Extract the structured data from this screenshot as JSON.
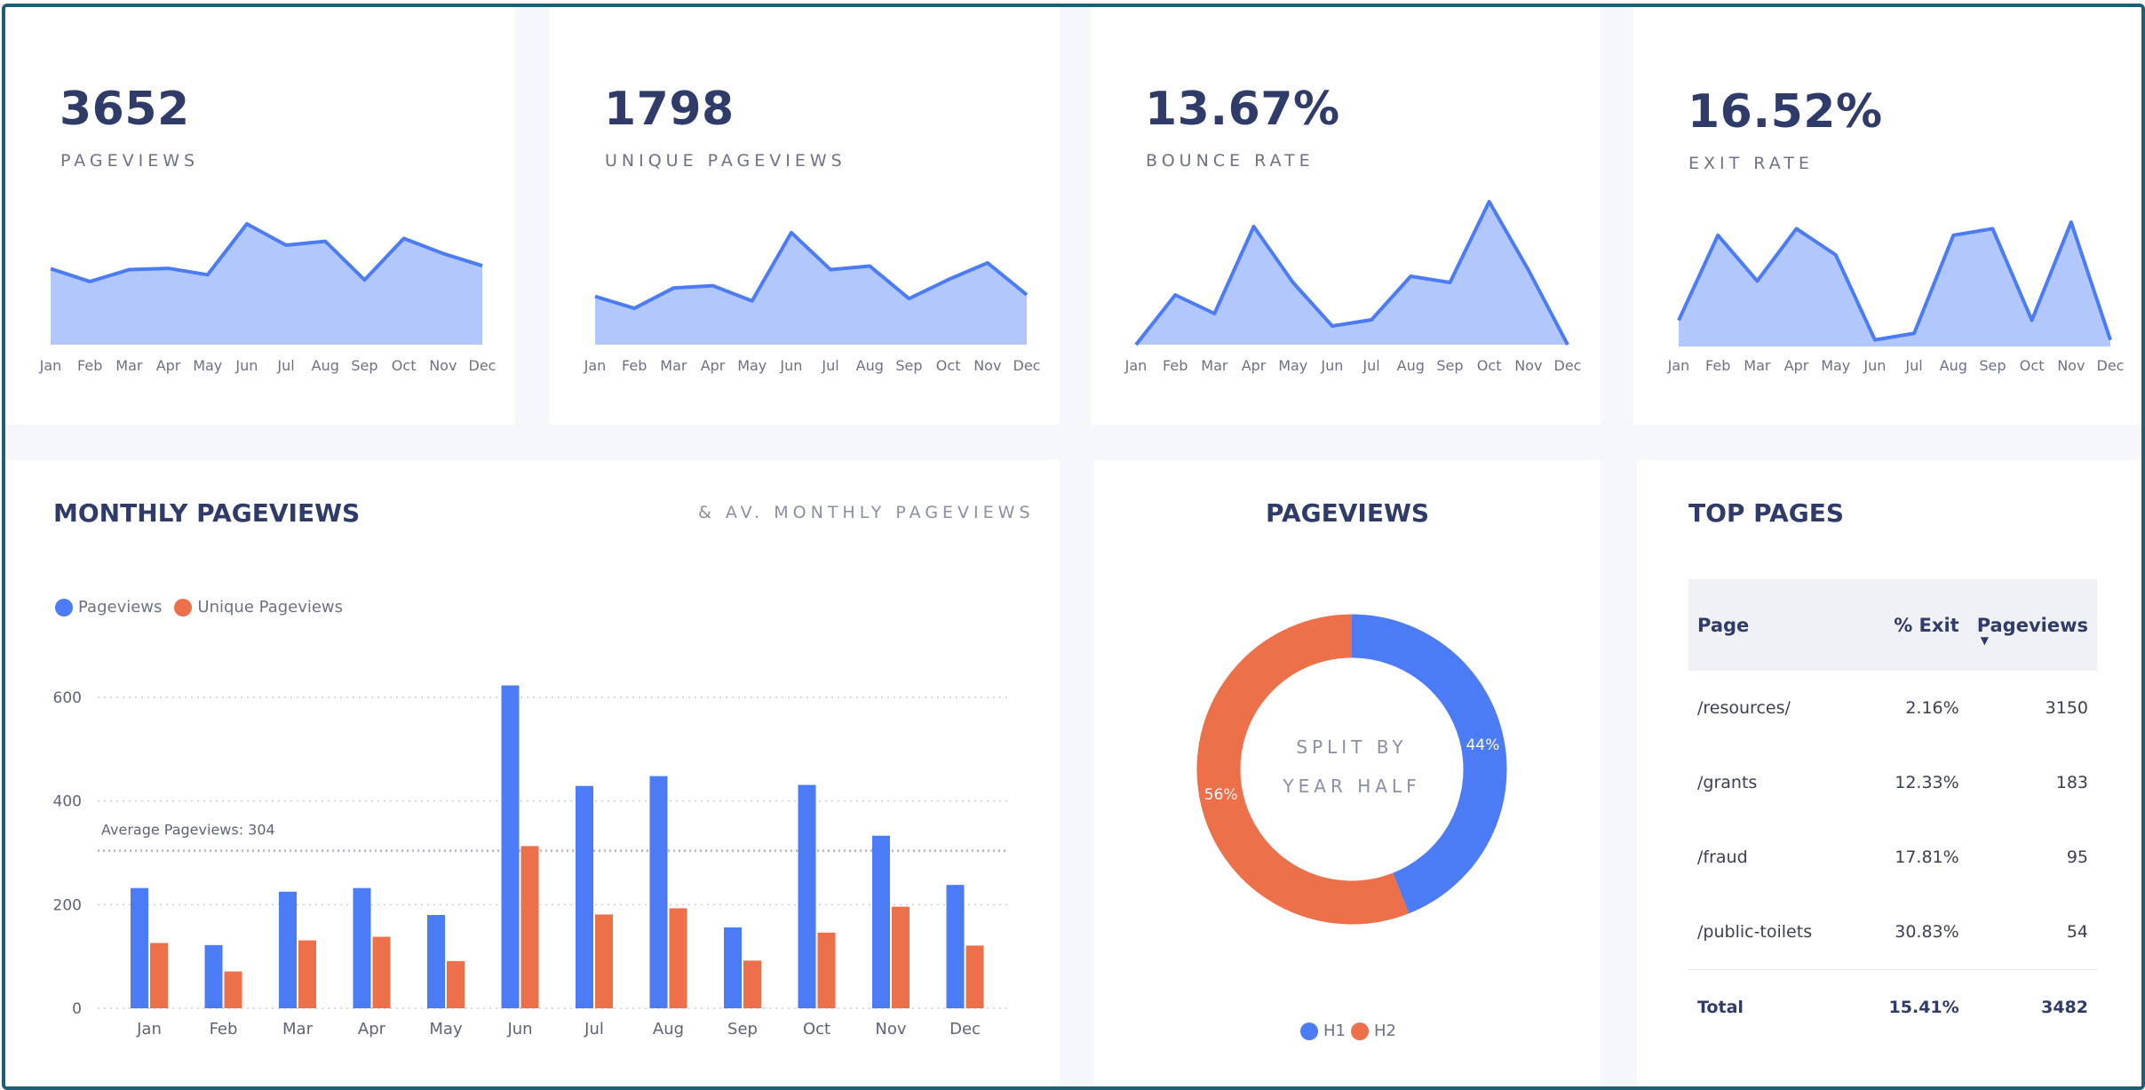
{
  "colors": {
    "accent_blue": "#4b7bf5",
    "accent_orange": "#ec7049",
    "spark_fill": "#b2c7fb",
    "title": "#2f3b69"
  },
  "kpis": [
    {
      "value": "3652",
      "label": "PAGEVIEWS"
    },
    {
      "value": "1798",
      "label": "UNIQUE PAGEVIEWS"
    },
    {
      "value": "13.67%",
      "label": "BOUNCE RATE"
    },
    {
      "value": "16.52%",
      "label": "EXIT RATE"
    }
  ],
  "monthly": {
    "title": "MONTHLY PAGEVIEWS",
    "subtitle": "& AV. MONTHLY PAGEVIEWS",
    "legend": [
      "Pageviews",
      "Unique Pageviews"
    ],
    "average_label": "Average Pageviews: 304"
  },
  "donut": {
    "title": "PAGEVIEWS",
    "center_line1": "SPLIT BY",
    "center_line2": "YEAR HALF",
    "legend": [
      "H1",
      "H2"
    ]
  },
  "top_pages": {
    "title": "TOP PAGES",
    "headers": [
      "Page",
      "% Exit",
      "Pageviews"
    ],
    "rows": [
      [
        "/resources/",
        "2.16%",
        "3150"
      ],
      [
        "/grants",
        "12.33%",
        "183"
      ],
      [
        "/fraud",
        "17.81%",
        "95"
      ],
      [
        "/public-toilets",
        "30.83%",
        "54"
      ]
    ],
    "total": [
      "Total",
      "15.41%",
      "3482"
    ]
  },
  "chart_data": [
    {
      "type": "area",
      "title": "",
      "categories": [
        "Jan",
        "Feb",
        "Mar",
        "Apr",
        "May",
        "Jun",
        "Jul",
        "Aug",
        "Sep",
        "Oct",
        "Nov",
        "Dec"
      ],
      "values": [
        236,
        196,
        233,
        237,
        217,
        375,
        309,
        321,
        201,
        330,
        283,
        245
      ]
    },
    {
      "type": "area",
      "title": "",
      "categories": [
        "Jan",
        "Feb",
        "Mar",
        "Apr",
        "May",
        "Jun",
        "Jul",
        "Aug",
        "Sep",
        "Oct",
        "Nov",
        "Dec"
      ],
      "values": [
        150,
        113,
        176,
        183,
        136,
        348,
        233,
        244,
        143,
        202,
        254,
        155
      ]
    },
    {
      "type": "area",
      "title": "",
      "categories": [
        "Jan",
        "Feb",
        "Mar",
        "Apr",
        "May",
        "Jun",
        "Jul",
        "Aug",
        "Sep",
        "Oct",
        "Nov",
        "Dec"
      ],
      "values": [
        0.0,
        0.08,
        0.05,
        0.19,
        0.1,
        0.03,
        0.04,
        0.11,
        0.1,
        0.23,
        0.12,
        0.0
      ]
    },
    {
      "type": "area",
      "title": "",
      "categories": [
        "Jan",
        "Feb",
        "Mar",
        "Apr",
        "May",
        "Jun",
        "Jul",
        "Aug",
        "Sep",
        "Oct",
        "Nov",
        "Dec"
      ],
      "values": [
        0.04,
        0.17,
        0.1,
        0.18,
        0.14,
        0.01,
        0.02,
        0.17,
        0.18,
        0.04,
        0.19,
        0.01
      ]
    },
    {
      "type": "bar",
      "title": "MONTHLY PAGEVIEWS",
      "categories": [
        "Jan",
        "Feb",
        "Mar",
        "Apr",
        "May",
        "Jun",
        "Jul",
        "Aug",
        "Sep",
        "Oct",
        "Nov",
        "Dec"
      ],
      "series": [
        {
          "name": "Pageviews",
          "values": [
            232,
            122,
            225,
            232,
            180,
            623,
            429,
            448,
            156,
            431,
            333,
            238
          ]
        },
        {
          "name": "Unique Pageviews",
          "values": [
            126,
            71,
            131,
            138,
            91,
            313,
            181,
            193,
            92,
            146,
            196,
            121
          ]
        }
      ],
      "yticks": [
        0,
        200,
        400,
        600
      ],
      "ylim": [
        0,
        650
      ],
      "reference_line": {
        "value": 304,
        "label": "Average Pageviews: 304"
      },
      "grid": true,
      "legend": "top-left"
    },
    {
      "type": "pie",
      "title": "PAGEVIEWS",
      "labels": [
        "H1",
        "H2"
      ],
      "values": [
        44,
        56
      ],
      "value_labels": [
        "44%",
        "56%"
      ],
      "donut": true
    }
  ]
}
